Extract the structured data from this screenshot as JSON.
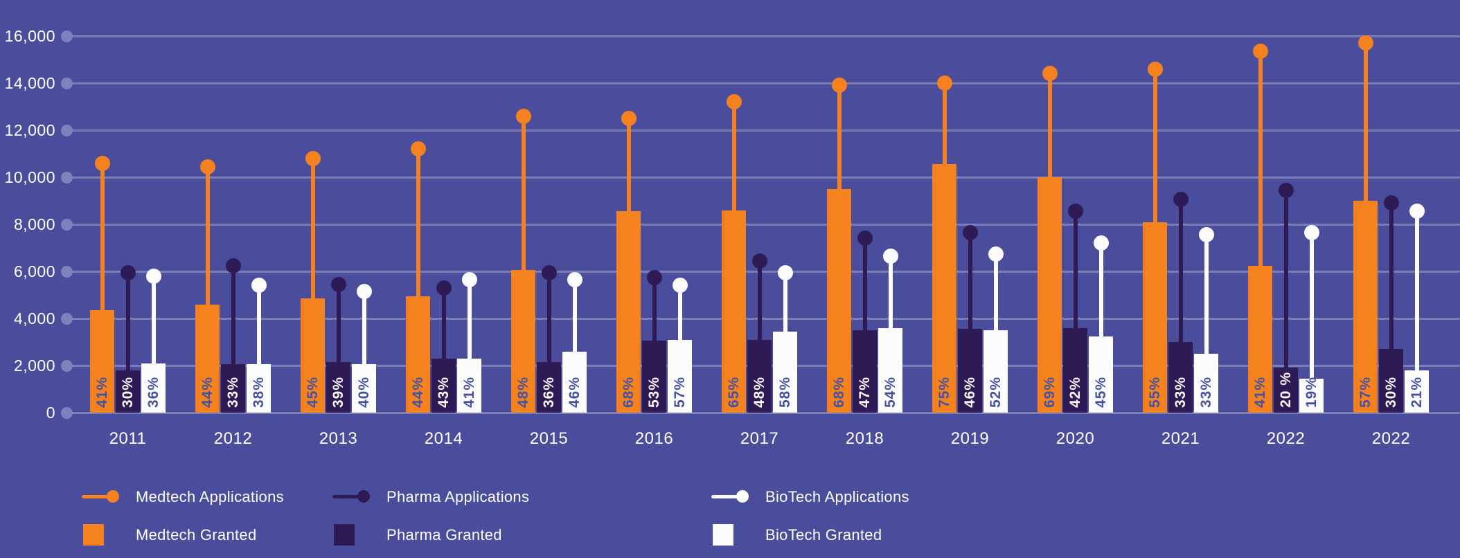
{
  "colors": {
    "background": "#4A4C9C",
    "medtech": "#F5821F",
    "pharma": "#2E1B56",
    "biotech": "#FCFCFC",
    "gridline": "rgba(255,255,255,0.28)",
    "grid_dot": "#7F82BB",
    "axis_text": "#FFFFFF",
    "pct_on_light": "#4351A2",
    "pct_on_dark": "#FCFCFC"
  },
  "y_axis": {
    "labels": [
      "16,000",
      "14,000",
      "12,000",
      "10,000",
      "8,000",
      "6,000",
      "4,000",
      "2,000",
      "0"
    ],
    "values": [
      16000,
      14000,
      12000,
      10000,
      8000,
      6000,
      4000,
      2000,
      0
    ]
  },
  "chart_data": {
    "type": "bar",
    "subtype": "grouped bars with lollipop application markers",
    "title": "",
    "xlabel": "",
    "ylabel": "",
    "ylim": [
      0,
      16000
    ],
    "grid": true,
    "legend_position": "bottom",
    "categories": [
      "2011",
      "2012",
      "2013",
      "2014",
      "2015",
      "2016",
      "2017",
      "2018",
      "2019",
      "2020",
      "2021",
      "2022",
      "2022"
    ],
    "series": [
      {
        "name": "Medtech Applications",
        "style": "lollipop",
        "color_key": "medtech",
        "values": [
          10600,
          10450,
          10800,
          11200,
          12600,
          12500,
          13200,
          13900,
          14000,
          14400,
          14600,
          15350,
          15700
        ]
      },
      {
        "name": "Pharma Applications",
        "style": "lollipop",
        "color_key": "pharma",
        "values": [
          5950,
          6250,
          5450,
          5300,
          5950,
          5750,
          6450,
          7400,
          7650,
          8550,
          9050,
          9450,
          8900
        ]
      },
      {
        "name": "BioTech Applications",
        "style": "lollipop",
        "color_key": "biotech",
        "values": [
          5800,
          5400,
          5150,
          5650,
          5650,
          5400,
          5950,
          6650,
          6750,
          7200,
          7550,
          7650,
          8550
        ]
      },
      {
        "name": "Medtech Granted",
        "style": "bar",
        "color_key": "medtech",
        "label_color_key": "pct_on_light",
        "values": [
          4350,
          4600,
          4850,
          4950,
          6050,
          8550,
          8600,
          9500,
          10550,
          10000,
          8100,
          6250,
          9000
        ],
        "labels": [
          "41%",
          "44%",
          "45%",
          "44%",
          "48%",
          "68%",
          "65%",
          "68%",
          "75%",
          "69%",
          "55%",
          "41%",
          "57%"
        ]
      },
      {
        "name": "Pharma Granted",
        "style": "bar",
        "color_key": "pharma",
        "label_color_key": "pct_on_dark",
        "values": [
          1800,
          2050,
          2150,
          2300,
          2150,
          3050,
          3100,
          3500,
          3550,
          3600,
          3000,
          1900,
          2700
        ],
        "labels": [
          "30%",
          "33%",
          "39%",
          "43%",
          "36%",
          "53%",
          "48%",
          "47%",
          "46%",
          "42%",
          "33%",
          "20 %",
          "30%"
        ]
      },
      {
        "name": "BioTech Granted",
        "style": "bar",
        "color_key": "biotech",
        "label_color_key": "pct_on_light",
        "values": [
          2100,
          2050,
          2050,
          2300,
          2600,
          3100,
          3450,
          3600,
          3500,
          3250,
          2500,
          1450,
          1800
        ],
        "labels": [
          "36%",
          "38%",
          "40%",
          "41%",
          "46%",
          "57%",
          "58%",
          "54%",
          "52%",
          "45%",
          "33%",
          "19%",
          "21%"
        ]
      }
    ],
    "legend": {
      "applications": [
        {
          "label": "Medtech Applications",
          "color_key": "medtech"
        },
        {
          "label": "Pharma Applications",
          "color_key": "pharma"
        },
        {
          "label": "BioTech Applications",
          "color_key": "biotech"
        }
      ],
      "granted": [
        {
          "label": "Medtech Granted",
          "color_key": "medtech"
        },
        {
          "label": "Pharma Granted",
          "color_key": "pharma"
        },
        {
          "label": "BioTech Granted",
          "color_key": "biotech"
        }
      ]
    }
  }
}
